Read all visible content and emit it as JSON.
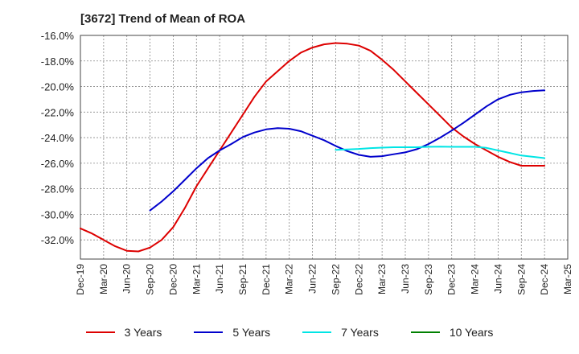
{
  "chart_data": {
    "type": "line",
    "title": "[3672]  Trend of Mean of ROA",
    "xlabel": "",
    "ylabel": "",
    "ylim": [
      -33.5,
      -16.0
    ],
    "y_ticks": [
      -16.0,
      -18.0,
      -20.0,
      -22.0,
      -24.0,
      -26.0,
      -28.0,
      -30.0,
      -32.0
    ],
    "y_tick_labels": [
      "-16.0%",
      "-18.0%",
      "-20.0%",
      "-22.0%",
      "-24.0%",
      "-26.0%",
      "-28.0%",
      "-30.0%",
      "-32.0%"
    ],
    "x_tick_labels": [
      "Dec-19",
      "Mar-20",
      "Jun-20",
      "Sep-20",
      "Dec-20",
      "Mar-21",
      "Jun-21",
      "Sep-21",
      "Dec-21",
      "Mar-22",
      "Jun-22",
      "Sep-22",
      "Dec-22",
      "Mar-23",
      "Jun-23",
      "Sep-23",
      "Dec-23",
      "Mar-24",
      "Jun-24",
      "Sep-24",
      "Dec-24",
      "Mar-25"
    ],
    "grid": true,
    "legend_position": "bottom",
    "series": [
      {
        "name": "3 Years",
        "color": "#dd0000",
        "x": [
          0,
          0.5,
          1,
          1.5,
          2,
          2.5,
          3,
          3.5,
          4,
          4.5,
          5,
          5.5,
          6,
          6.5,
          7,
          7.5,
          8,
          8.5,
          9,
          9.5,
          10,
          10.5,
          11,
          11.5,
          12,
          12.5,
          13,
          13.5,
          14,
          14.5,
          15,
          15.5,
          16,
          16.5,
          17,
          17.5,
          18,
          18.5,
          19,
          19.5,
          20
        ],
        "values": [
          -31.1,
          -31.5,
          -32.0,
          -32.5,
          -32.85,
          -32.9,
          -32.6,
          -32.0,
          -31.0,
          -29.5,
          -27.8,
          -26.4,
          -25.0,
          -23.6,
          -22.2,
          -20.8,
          -19.6,
          -18.8,
          -18.0,
          -17.35,
          -16.95,
          -16.7,
          -16.6,
          -16.65,
          -16.8,
          -17.2,
          -17.9,
          -18.7,
          -19.6,
          -20.5,
          -21.4,
          -22.3,
          -23.2,
          -23.9,
          -24.5,
          -25.0,
          -25.5,
          -25.9,
          -26.2,
          -26.2,
          -26.2
        ]
      },
      {
        "name": "5 Years",
        "color": "#0000cc",
        "x": [
          3,
          3.5,
          4,
          4.5,
          5,
          5.5,
          6,
          6.5,
          7,
          7.5,
          8,
          8.5,
          9,
          9.5,
          10,
          10.5,
          11,
          11.5,
          12,
          12.5,
          13,
          13.5,
          14,
          14.5,
          15,
          15.5,
          16,
          16.5,
          17,
          17.5,
          18,
          18.5,
          19,
          19.5,
          20
        ],
        "values": [
          -29.7,
          -29.0,
          -28.2,
          -27.3,
          -26.4,
          -25.6,
          -25.0,
          -24.5,
          -23.95,
          -23.6,
          -23.35,
          -23.25,
          -23.3,
          -23.5,
          -23.85,
          -24.2,
          -24.65,
          -25.05,
          -25.35,
          -25.5,
          -25.45,
          -25.3,
          -25.15,
          -24.9,
          -24.5,
          -24.0,
          -23.45,
          -22.85,
          -22.2,
          -21.55,
          -21.0,
          -20.65,
          -20.45,
          -20.35,
          -20.3
        ]
      },
      {
        "name": "7 Years",
        "color": "#00e5e5",
        "x": [
          11,
          11.5,
          12,
          12.5,
          13,
          13.5,
          14,
          14.5,
          15,
          15.5,
          16,
          16.5,
          17,
          17.5,
          18,
          18.5,
          19,
          19.5,
          20
        ],
        "values": [
          -24.95,
          -24.92,
          -24.88,
          -24.82,
          -24.78,
          -24.75,
          -24.75,
          -24.75,
          -24.72,
          -24.7,
          -24.72,
          -24.72,
          -24.72,
          -24.8,
          -25.0,
          -25.2,
          -25.4,
          -25.5,
          -25.6
        ]
      },
      {
        "name": "10 Years",
        "color": "#008000",
        "x": [],
        "values": []
      }
    ]
  }
}
